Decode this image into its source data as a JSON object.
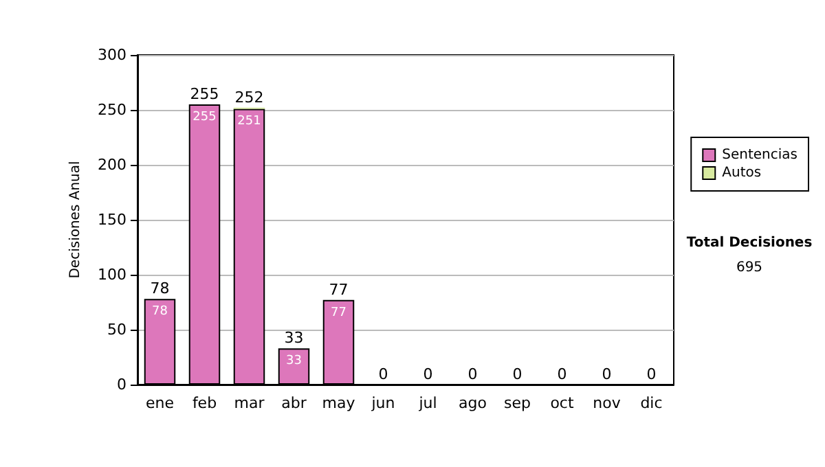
{
  "chart_data": {
    "type": "bar",
    "stacked": true,
    "ylabel": "Decisiones Anual",
    "categories": [
      "ene",
      "feb",
      "mar",
      "abr",
      "may",
      "jun",
      "jul",
      "ago",
      "sep",
      "oct",
      "nov",
      "dic"
    ],
    "series": [
      {
        "name": "Sentencias",
        "color": "#dd77bb",
        "values": [
          78,
          255,
          251,
          33,
          77,
          0,
          0,
          0,
          0,
          0,
          0,
          0
        ],
        "value_labels": [
          "78",
          "255",
          "251",
          "33",
          "77",
          null,
          null,
          null,
          null,
          null,
          null,
          null
        ]
      },
      {
        "name": "Autos",
        "color": "#d8eaa0",
        "values": [
          0,
          0,
          1,
          0,
          0,
          0,
          0,
          0,
          0,
          0,
          0,
          0
        ]
      }
    ],
    "totals": [
      "78",
      "255",
      "252",
      "33",
      "77",
      "0",
      "0",
      "0",
      "0",
      "0",
      "0",
      "0"
    ],
    "ylim": [
      0,
      300
    ],
    "yticks": [
      0,
      50,
      100,
      150,
      200,
      250,
      300
    ],
    "grid": "y",
    "legend": "right",
    "annotations": [
      "Total Decisiones",
      "695"
    ]
  }
}
